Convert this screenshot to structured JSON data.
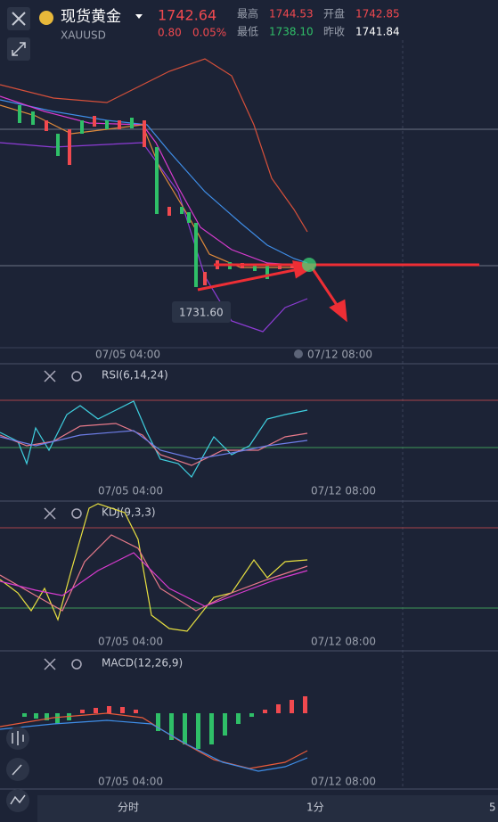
{
  "header": {
    "name": "现货黄金",
    "symbol": "XAUUSD",
    "price": "1742.64",
    "change": "0.80",
    "change_pct": "0.05%",
    "stats": [
      {
        "label": "最高",
        "value": "1744.53"
      },
      {
        "label": "开盘",
        "value": "1742.85"
      },
      {
        "label": "最低",
        "value": "1738.10"
      },
      {
        "label": "昨收",
        "value": "1741.84"
      }
    ]
  },
  "main_chart": {
    "low_label": "1731.60",
    "x_labels": [
      "07/05 04:00",
      "07/12 08:00"
    ]
  },
  "panels": [
    {
      "label": "RSI(6,14,24)",
      "x_labels": [
        "07/05 04:00",
        "07/12 08:00"
      ]
    },
    {
      "label": "KDJ(9,3,3)",
      "x_labels": [
        "07/05 04:00",
        "07/12 08:00"
      ]
    },
    {
      "label": "MACD(12,26,9)",
      "x_labels": [
        "07/05 04:00",
        "07/12 08:00"
      ]
    }
  ],
  "bottom_tabs": [
    "分时",
    "1分",
    "5"
  ]
}
